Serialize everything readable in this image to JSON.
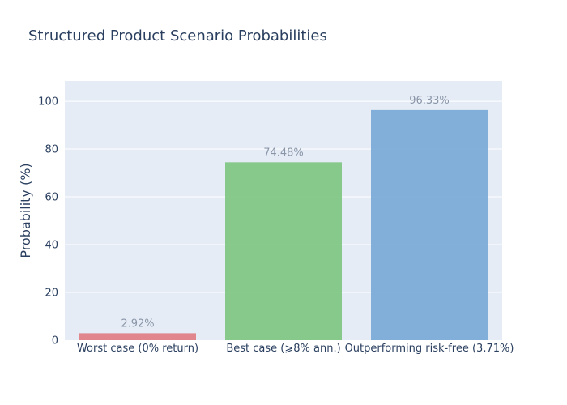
{
  "chart_data": {
    "type": "bar",
    "title": "Structured Product Scenario Probabilities",
    "xlabel": "",
    "ylabel": "Probability (%)",
    "categories": [
      "Worst case (0% return)",
      "Best case (⩾8% ann.)",
      "Outperforming risk-free (3.71%)"
    ],
    "values": [
      2.92,
      74.48,
      96.33
    ],
    "data_labels": [
      "2.92%",
      "74.48%",
      "96.33%"
    ],
    "colors": [
      "#e07b82",
      "#7cc47f",
      "#77a9d6"
    ],
    "ylim": [
      0,
      108.5
    ],
    "yticks": [
      0,
      20,
      40,
      60,
      80,
      100
    ],
    "grid": true,
    "legend": "none",
    "plot_background": "#e5ecf6",
    "gridline_color": "#ffffff"
  }
}
